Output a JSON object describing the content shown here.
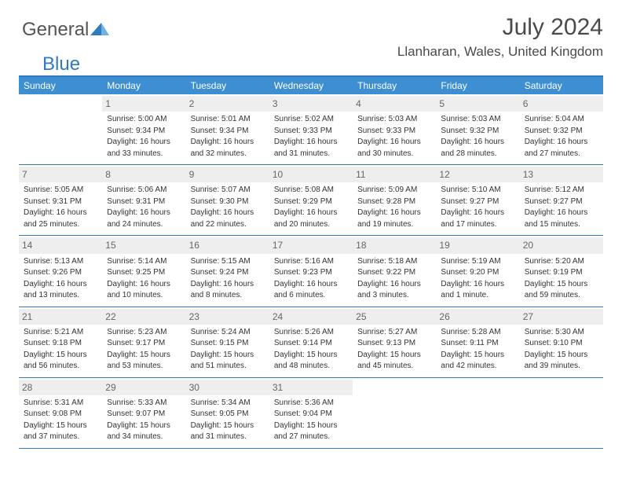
{
  "logo": {
    "word1": "General",
    "word2": "Blue"
  },
  "title": "July 2024",
  "location": "Llanharan, Wales, United Kingdom",
  "colors": {
    "accent": "#3d8fd1",
    "border": "#2f7ac0",
    "daynum_bg": "#eeeeee",
    "text": "#333333",
    "logo_blue": "#2f7ac0"
  },
  "weekdays": [
    "Sunday",
    "Monday",
    "Tuesday",
    "Wednesday",
    "Thursday",
    "Friday",
    "Saturday"
  ],
  "weeks": [
    [
      {
        "n": "",
        "lines": []
      },
      {
        "n": "1",
        "lines": [
          "Sunrise: 5:00 AM",
          "Sunset: 9:34 PM",
          "Daylight: 16 hours",
          "and 33 minutes."
        ]
      },
      {
        "n": "2",
        "lines": [
          "Sunrise: 5:01 AM",
          "Sunset: 9:34 PM",
          "Daylight: 16 hours",
          "and 32 minutes."
        ]
      },
      {
        "n": "3",
        "lines": [
          "Sunrise: 5:02 AM",
          "Sunset: 9:33 PM",
          "Daylight: 16 hours",
          "and 31 minutes."
        ]
      },
      {
        "n": "4",
        "lines": [
          "Sunrise: 5:03 AM",
          "Sunset: 9:33 PM",
          "Daylight: 16 hours",
          "and 30 minutes."
        ]
      },
      {
        "n": "5",
        "lines": [
          "Sunrise: 5:03 AM",
          "Sunset: 9:32 PM",
          "Daylight: 16 hours",
          "and 28 minutes."
        ]
      },
      {
        "n": "6",
        "lines": [
          "Sunrise: 5:04 AM",
          "Sunset: 9:32 PM",
          "Daylight: 16 hours",
          "and 27 minutes."
        ]
      }
    ],
    [
      {
        "n": "7",
        "lines": [
          "Sunrise: 5:05 AM",
          "Sunset: 9:31 PM",
          "Daylight: 16 hours",
          "and 25 minutes."
        ]
      },
      {
        "n": "8",
        "lines": [
          "Sunrise: 5:06 AM",
          "Sunset: 9:31 PM",
          "Daylight: 16 hours",
          "and 24 minutes."
        ]
      },
      {
        "n": "9",
        "lines": [
          "Sunrise: 5:07 AM",
          "Sunset: 9:30 PM",
          "Daylight: 16 hours",
          "and 22 minutes."
        ]
      },
      {
        "n": "10",
        "lines": [
          "Sunrise: 5:08 AM",
          "Sunset: 9:29 PM",
          "Daylight: 16 hours",
          "and 20 minutes."
        ]
      },
      {
        "n": "11",
        "lines": [
          "Sunrise: 5:09 AM",
          "Sunset: 9:28 PM",
          "Daylight: 16 hours",
          "and 19 minutes."
        ]
      },
      {
        "n": "12",
        "lines": [
          "Sunrise: 5:10 AM",
          "Sunset: 9:27 PM",
          "Daylight: 16 hours",
          "and 17 minutes."
        ]
      },
      {
        "n": "13",
        "lines": [
          "Sunrise: 5:12 AM",
          "Sunset: 9:27 PM",
          "Daylight: 16 hours",
          "and 15 minutes."
        ]
      }
    ],
    [
      {
        "n": "14",
        "lines": [
          "Sunrise: 5:13 AM",
          "Sunset: 9:26 PM",
          "Daylight: 16 hours",
          "and 13 minutes."
        ]
      },
      {
        "n": "15",
        "lines": [
          "Sunrise: 5:14 AM",
          "Sunset: 9:25 PM",
          "Daylight: 16 hours",
          "and 10 minutes."
        ]
      },
      {
        "n": "16",
        "lines": [
          "Sunrise: 5:15 AM",
          "Sunset: 9:24 PM",
          "Daylight: 16 hours",
          "and 8 minutes."
        ]
      },
      {
        "n": "17",
        "lines": [
          "Sunrise: 5:16 AM",
          "Sunset: 9:23 PM",
          "Daylight: 16 hours",
          "and 6 minutes."
        ]
      },
      {
        "n": "18",
        "lines": [
          "Sunrise: 5:18 AM",
          "Sunset: 9:22 PM",
          "Daylight: 16 hours",
          "and 3 minutes."
        ]
      },
      {
        "n": "19",
        "lines": [
          "Sunrise: 5:19 AM",
          "Sunset: 9:20 PM",
          "Daylight: 16 hours",
          "and 1 minute."
        ]
      },
      {
        "n": "20",
        "lines": [
          "Sunrise: 5:20 AM",
          "Sunset: 9:19 PM",
          "Daylight: 15 hours",
          "and 59 minutes."
        ]
      }
    ],
    [
      {
        "n": "21",
        "lines": [
          "Sunrise: 5:21 AM",
          "Sunset: 9:18 PM",
          "Daylight: 15 hours",
          "and 56 minutes."
        ]
      },
      {
        "n": "22",
        "lines": [
          "Sunrise: 5:23 AM",
          "Sunset: 9:17 PM",
          "Daylight: 15 hours",
          "and 53 minutes."
        ]
      },
      {
        "n": "23",
        "lines": [
          "Sunrise: 5:24 AM",
          "Sunset: 9:15 PM",
          "Daylight: 15 hours",
          "and 51 minutes."
        ]
      },
      {
        "n": "24",
        "lines": [
          "Sunrise: 5:26 AM",
          "Sunset: 9:14 PM",
          "Daylight: 15 hours",
          "and 48 minutes."
        ]
      },
      {
        "n": "25",
        "lines": [
          "Sunrise: 5:27 AM",
          "Sunset: 9:13 PM",
          "Daylight: 15 hours",
          "and 45 minutes."
        ]
      },
      {
        "n": "26",
        "lines": [
          "Sunrise: 5:28 AM",
          "Sunset: 9:11 PM",
          "Daylight: 15 hours",
          "and 42 minutes."
        ]
      },
      {
        "n": "27",
        "lines": [
          "Sunrise: 5:30 AM",
          "Sunset: 9:10 PM",
          "Daylight: 15 hours",
          "and 39 minutes."
        ]
      }
    ],
    [
      {
        "n": "28",
        "lines": [
          "Sunrise: 5:31 AM",
          "Sunset: 9:08 PM",
          "Daylight: 15 hours",
          "and 37 minutes."
        ]
      },
      {
        "n": "29",
        "lines": [
          "Sunrise: 5:33 AM",
          "Sunset: 9:07 PM",
          "Daylight: 15 hours",
          "and 34 minutes."
        ]
      },
      {
        "n": "30",
        "lines": [
          "Sunrise: 5:34 AM",
          "Sunset: 9:05 PM",
          "Daylight: 15 hours",
          "and 31 minutes."
        ]
      },
      {
        "n": "31",
        "lines": [
          "Sunrise: 5:36 AM",
          "Sunset: 9:04 PM",
          "Daylight: 15 hours",
          "and 27 minutes."
        ]
      },
      {
        "n": "",
        "lines": []
      },
      {
        "n": "",
        "lines": []
      },
      {
        "n": "",
        "lines": []
      }
    ]
  ]
}
